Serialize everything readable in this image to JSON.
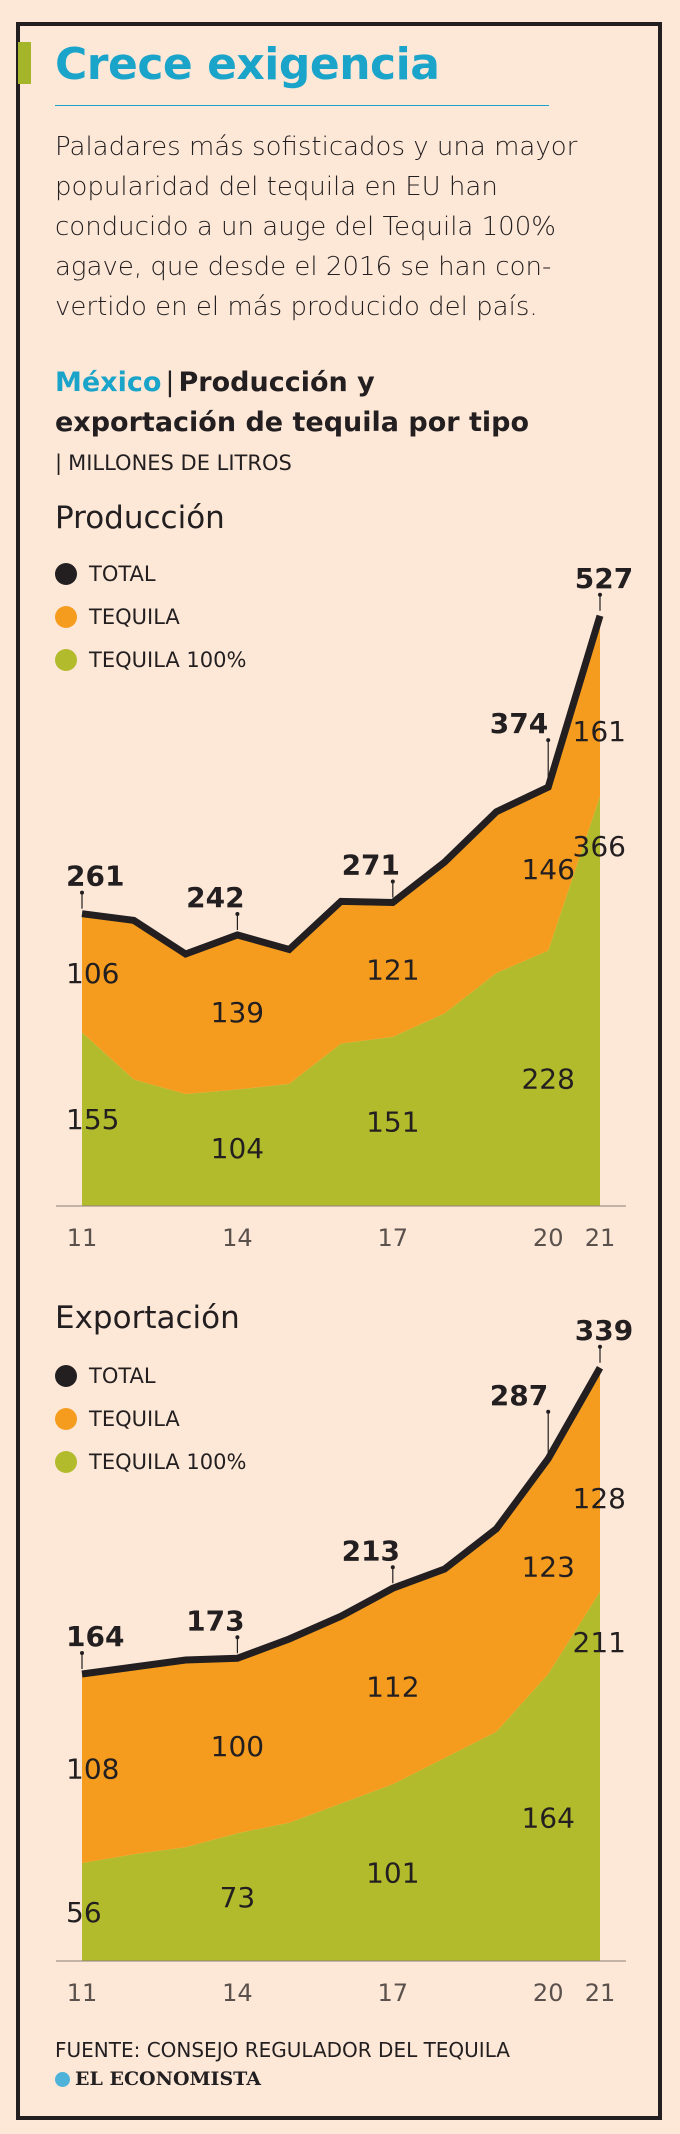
{
  "header": {
    "title": "Crece exigencia",
    "lede_lines": [
      "Paladares más sofisticados y una mayor",
      "popularidad del tequila en EU han",
      "conducido a un auge del Tequila 100%",
      "agave, que desde el 2016 se han con-",
      "vertido en el más producido del país."
    ],
    "country": "México",
    "separator": "|",
    "subtitle_line1": "Producción y",
    "subtitle_line2": "exportación de tequila por tipo",
    "units": "MILLONES DE LITROS"
  },
  "colors": {
    "total": "#231f20",
    "tequila": "#f59c1f",
    "tequila100": "#b2bb2c",
    "accent": "#1ba4c9"
  },
  "chart_data": [
    {
      "type": "area",
      "title": "Producción",
      "legend": [
        "TOTAL",
        "TEQUILA",
        "TEQUILA 100%"
      ],
      "x": [
        2011,
        2012,
        2013,
        2014,
        2015,
        2016,
        2017,
        2018,
        2019,
        2020,
        2021
      ],
      "x_tick_labels": [
        {
          "year": 2011,
          "label": "11"
        },
        {
          "year": 2014,
          "label": "14"
        },
        {
          "year": 2017,
          "label": "17"
        },
        {
          "year": 2020,
          "label": "20"
        },
        {
          "year": 2021,
          "label": "21"
        }
      ],
      "series": [
        {
          "name": "TOTAL",
          "values": [
            261,
            255,
            225,
            242,
            229,
            272,
            271,
            307,
            352,
            374,
            527
          ]
        },
        {
          "name": "TEQUILA 100%",
          "values": [
            155,
            113,
            100,
            104,
            109,
            145,
            151,
            172,
            208,
            228,
            366
          ]
        }
      ],
      "total_labels": [
        {
          "year": 2011,
          "label": "261"
        },
        {
          "year": 2014,
          "label": "242"
        },
        {
          "year": 2017,
          "label": "271"
        },
        {
          "year": 2020,
          "label": "374"
        },
        {
          "year": 2021,
          "label": "527"
        }
      ],
      "tequila_labels": [
        {
          "year": 2011,
          "label": "106"
        },
        {
          "year": 2014,
          "label": "139"
        },
        {
          "year": 2017,
          "label": "121"
        },
        {
          "year": 2020,
          "label": "146"
        },
        {
          "year": 2021,
          "label": "161"
        }
      ],
      "tequila100_labels": [
        {
          "year": 2011,
          "label": "155"
        },
        {
          "year": 2014,
          "label": "104"
        },
        {
          "year": 2017,
          "label": "151"
        },
        {
          "year": 2020,
          "label": "228"
        },
        {
          "year": 2021,
          "label": "366"
        }
      ],
      "ylim": [
        0,
        540
      ]
    },
    {
      "type": "area",
      "title": "Exportación",
      "legend": [
        "TOTAL",
        "TEQUILA",
        "TEQUILA 100%"
      ],
      "x": [
        2011,
        2012,
        2013,
        2014,
        2015,
        2016,
        2017,
        2018,
        2019,
        2020,
        2021
      ],
      "x_tick_labels": [
        {
          "year": 2011,
          "label": "11"
        },
        {
          "year": 2014,
          "label": "14"
        },
        {
          "year": 2017,
          "label": "17"
        },
        {
          "year": 2020,
          "label": "20"
        },
        {
          "year": 2021,
          "label": "21"
        }
      ],
      "series": [
        {
          "name": "TOTAL",
          "values": [
            164,
            168,
            172,
            173,
            184,
            197,
            213,
            224,
            247,
            287,
            339
          ]
        },
        {
          "name": "TEQUILA 100%",
          "values": [
            56,
            61,
            65,
            73,
            79,
            90,
            101,
            116,
            131,
            164,
            211
          ]
        }
      ],
      "total_labels": [
        {
          "year": 2011,
          "label": "164"
        },
        {
          "year": 2014,
          "label": "173"
        },
        {
          "year": 2017,
          "label": "213"
        },
        {
          "year": 2020,
          "label": "287"
        },
        {
          "year": 2021,
          "label": "339"
        }
      ],
      "tequila_labels": [
        {
          "year": 2011,
          "label": "108"
        },
        {
          "year": 2014,
          "label": "100"
        },
        {
          "year": 2017,
          "label": "112"
        },
        {
          "year": 2020,
          "label": "123"
        },
        {
          "year": 2021,
          "label": "128"
        }
      ],
      "tequila100_labels": [
        {
          "year": 2011,
          "label": "56"
        },
        {
          "year": 2014,
          "label": "73"
        },
        {
          "year": 2017,
          "label": "101"
        },
        {
          "year": 2020,
          "label": "164"
        },
        {
          "year": 2021,
          "label": "211"
        }
      ],
      "ylim": [
        0,
        350
      ]
    }
  ],
  "footer": {
    "source": "FUENTE: CONSEJO REGULADOR DEL TEQUILA",
    "brand": "EL ECONOMISTA"
  }
}
